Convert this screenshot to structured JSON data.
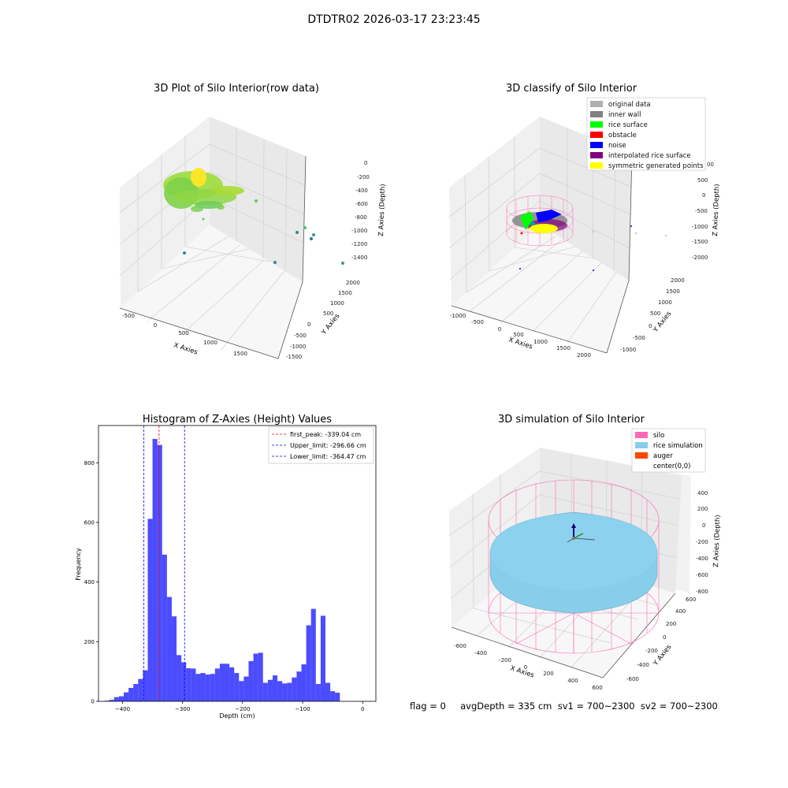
{
  "suptitle": "DTDTR02 2026-03-17 23:23:45",
  "footer": {
    "text": "flag = 0     avgDepth = 335 cm  sv1 = 700~2300  sv2 = 700~2300"
  },
  "colors": {
    "silo": "#ff69b4",
    "rice_simulation": "#87ceeb",
    "auger": "#ff4500",
    "histogram_bar": "#0000ff",
    "peak_line": "#ff0000",
    "limit_line": "#0000ff"
  },
  "chart_data": [
    {
      "id": "plot1",
      "type": "scatter3d",
      "title": "3D Plot of Silo Interior(row data)",
      "xlabel": "X Axies",
      "ylabel": "Y Axies",
      "zlabel": "Z Axies (Depth)",
      "xticks": [
        "-500",
        "0",
        "500",
        "1000",
        "1500"
      ],
      "yticks": [
        "-1500",
        "-1000",
        "-500",
        "0",
        "500",
        "1000",
        "1500",
        "2000"
      ],
      "zticks": [
        "0",
        "-200",
        "-400",
        "-600",
        "-800",
        "-1000",
        "-1200",
        "-1400"
      ],
      "xlim": [
        -600,
        1900
      ],
      "ylim": [
        -1500,
        2100
      ],
      "zlim": [
        -1500,
        50
      ],
      "colormap": "viridis",
      "notes": "dense point cloud near top-left corner, plus scattered outliers"
    },
    {
      "id": "plot2",
      "type": "scatter3d",
      "title": "3D classify of Silo Interior",
      "xlabel": "X Axies",
      "ylabel": "Y Axies",
      "zlabel": "Z Axies (Depth)",
      "xticks": [
        "-1000",
        "-500",
        "0",
        "500",
        "1000",
        "1500",
        "2000"
      ],
      "yticks": [
        "-1000",
        "-500",
        "0",
        "500",
        "1000",
        "1500",
        "2000"
      ],
      "zticks": [
        "500",
        "0",
        "-500",
        "-1000",
        "-1500",
        "-2000"
      ],
      "ztick_partial": "00",
      "legend": [
        {
          "label": "original data",
          "color": "#b0b0b0"
        },
        {
          "label": "inner wall",
          "color": "#808080"
        },
        {
          "label": "rice surface",
          "color": "#00ff00"
        },
        {
          "label": "obstacle",
          "color": "#ff0000"
        },
        {
          "label": "noise",
          "color": "#0000ff"
        },
        {
          "label": "interpolated rice surface",
          "color": "#800080"
        },
        {
          "label": "symmetric generated points",
          "color": "#ffff00"
        }
      ],
      "legend_position": "top-right"
    },
    {
      "id": "plot3",
      "type": "bar",
      "title": "Histogram of Z-Axies (Height) Values",
      "xlabel": "Depth (cm)",
      "ylabel": "Frequency",
      "xlim": [
        -440,
        22
      ],
      "ylim": [
        0,
        925
      ],
      "xticks": [
        -400,
        -300,
        -200,
        -100,
        0
      ],
      "yticks": [
        0,
        200,
        400,
        600,
        800
      ],
      "bin_start": -430,
      "bin_width": 8,
      "values": [
        2,
        5,
        14,
        17,
        30,
        45,
        58,
        75,
        104,
        612,
        880,
        860,
        492,
        350,
        285,
        155,
        131,
        111,
        110,
        92,
        95,
        90,
        92,
        110,
        126,
        126,
        114,
        95,
        68,
        83,
        135,
        160,
        163,
        62,
        72,
        87,
        68,
        60,
        62,
        80,
        100,
        124,
        255,
        310,
        58,
        287,
        62,
        34,
        29
      ],
      "vlines": [
        {
          "label": "first_peak: -339.04 cm",
          "x": -339.04,
          "color": "#ff0000"
        },
        {
          "label": "Upper_limit: -296.66 cm",
          "x": -296.66,
          "color": "#0000ff"
        },
        {
          "label": "Lower_limit: -364.47 cm",
          "x": -364.47,
          "color": "#0000ff"
        }
      ],
      "legend_position": "top-right"
    },
    {
      "id": "plot4",
      "type": "surface3d",
      "title": "3D simulation of Silo Interior",
      "xlabel": "X Axies",
      "ylabel": "Y Axies",
      "zlabel": "Z Axies (Depth)",
      "xticks": [
        "-600",
        "-400",
        "-200",
        "0",
        "200",
        "400",
        "600"
      ],
      "yticks": [
        "-600",
        "-400",
        "-200",
        "0",
        "200",
        "400",
        "600"
      ],
      "zticks": [
        "400",
        "200",
        "0",
        "-200",
        "-400",
        "-600",
        "-800"
      ],
      "legend": [
        {
          "label": "silo",
          "color": "#ff69b4"
        },
        {
          "label": "rice simulation",
          "color": "#87ceeb"
        },
        {
          "label": "auger",
          "color": "#ff4500"
        },
        {
          "label": "center(0,0)",
          "color": ""
        }
      ],
      "legend_position": "top-right"
    }
  ]
}
